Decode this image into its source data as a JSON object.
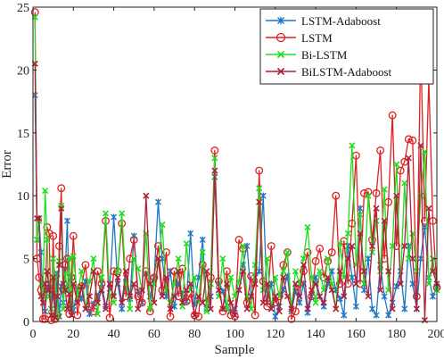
{
  "chart_data": {
    "type": "line",
    "xlabel": "Sample",
    "ylabel": "Error",
    "xlim": [
      0,
      200
    ],
    "ylim": [
      0,
      25
    ],
    "x_ticks": [
      "0",
      "20",
      "40",
      "60",
      "80",
      "100",
      "120",
      "140",
      "160",
      "180",
      "200"
    ],
    "y_ticks": [
      "0",
      "5",
      "10",
      "15",
      "20",
      "25"
    ],
    "legend_position": "top-right",
    "grid": false,
    "series": [
      {
        "name": "LSTM-Adaboost",
        "color": "#1f77c4",
        "marker": "asterisk",
        "x": [
          1,
          2,
          3,
          4,
          5,
          6,
          7,
          8,
          9,
          10,
          11,
          12,
          13,
          14,
          15,
          16,
          17,
          18,
          19,
          20,
          22,
          24,
          26,
          28,
          30,
          32,
          34,
          36,
          38,
          40,
          42,
          44,
          46,
          48,
          50,
          52,
          54,
          56,
          58,
          60,
          62,
          64,
          66,
          68,
          70,
          72,
          74,
          76,
          78,
          80,
          82,
          84,
          86,
          88,
          90,
          92,
          94,
          96,
          98,
          100,
          102,
          104,
          106,
          108,
          110,
          112,
          114,
          116,
          118,
          120,
          122,
          124,
          126,
          128,
          130,
          132,
          134,
          136,
          138,
          140,
          142,
          144,
          146,
          148,
          150,
          152,
          154,
          156,
          158,
          160,
          162,
          164,
          166,
          168,
          170,
          172,
          174,
          176,
          178,
          180,
          182,
          184,
          186,
          188,
          190,
          192,
          194,
          196,
          198,
          200
        ],
        "y": [
          18.0,
          6.5,
          8.2,
          5.5,
          1.5,
          0.8,
          2.5,
          3.0,
          1.0,
          2.2,
          0.5,
          3.8,
          0.4,
          2.8,
          1.5,
          4.2,
          8.0,
          1.2,
          3.5,
          0.9,
          2.5,
          1.8,
          3.2,
          0.6,
          1.4,
          2.0,
          3.0,
          1.2,
          2.6,
          8.3,
          3.0,
          1.0,
          3.5,
          1.8,
          6.8,
          2.4,
          1.5,
          3.8,
          2.0,
          3.5,
          9.5,
          5.0,
          2.0,
          4.0,
          1.2,
          3.0,
          2.2,
          1.6,
          7.0,
          1.4,
          3.5,
          6.5,
          1.0,
          2.0,
          11.5,
          3.0,
          2.4,
          1.0,
          0.8,
          1.0,
          2.5,
          4.5,
          6.0,
          2.0,
          3.5,
          4.0,
          10.0,
          1.5,
          3.0,
          0.4,
          1.2,
          2.5,
          3.6,
          0.8,
          2.4,
          1.5,
          3.0,
          0.7,
          2.0,
          3.5,
          2.0,
          1.2,
          3.0,
          4.0,
          2.5,
          1.8,
          0.5,
          6.0,
          3.5,
          1.2,
          9.0,
          2.5,
          5.0,
          1.0,
          0.5,
          4.5,
          2.0,
          0.5,
          1.5,
          2.8,
          4.0,
          1.0,
          6.0,
          3.0,
          1.0,
          5.0,
          7.5,
          3.5,
          2.0,
          2.8
        ]
      },
      {
        "name": "LSTM",
        "color": "#e02020",
        "marker": "circle",
        "x": [
          1,
          2,
          3,
          4,
          5,
          6,
          7,
          8,
          9,
          10,
          11,
          12,
          13,
          14,
          15,
          16,
          17,
          18,
          19,
          20,
          22,
          24,
          26,
          28,
          30,
          32,
          34,
          36,
          38,
          40,
          42,
          44,
          46,
          48,
          50,
          52,
          54,
          56,
          58,
          60,
          62,
          64,
          66,
          68,
          70,
          72,
          74,
          76,
          78,
          80,
          82,
          84,
          86,
          88,
          90,
          92,
          94,
          96,
          98,
          100,
          102,
          104,
          106,
          108,
          110,
          112,
          114,
          116,
          118,
          120,
          122,
          124,
          126,
          128,
          130,
          132,
          134,
          136,
          138,
          140,
          142,
          144,
          146,
          148,
          150,
          152,
          154,
          156,
          158,
          160,
          162,
          164,
          166,
          168,
          170,
          172,
          174,
          176,
          178,
          180,
          182,
          184,
          186,
          188,
          190,
          192,
          194,
          196,
          198,
          200
        ],
        "y": [
          24.6,
          5.0,
          3.5,
          2.5,
          0.2,
          0.2,
          7.5,
          7.0,
          0.1,
          6.8,
          0.2,
          0.5,
          6.0,
          10.6,
          2.5,
          4.5,
          5.0,
          0.6,
          3.5,
          6.8,
          0.5,
          2.8,
          4.5,
          1.2,
          0.8,
          4.0,
          3.0,
          8.0,
          0.3,
          4.0,
          4.0,
          7.8,
          2.0,
          5.0,
          6.5,
          2.0,
          1.5,
          4.0,
          0.8,
          3.5,
          6.0,
          2.5,
          5.5,
          0.4,
          4.0,
          2.0,
          4.2,
          1.6,
          2.2,
          0.5,
          0.4,
          4.5,
          1.5,
          3.5,
          13.6,
          3.2,
          0.8,
          4.0,
          0.5,
          0.4,
          6.5,
          5.8,
          1.5,
          3.6,
          0.5,
          12.0,
          3.2,
          1.2,
          6.0,
          1.5,
          2.0,
          4.5,
          5.5,
          0.2,
          0.8,
          3.0,
          4.0,
          5.5,
          2.0,
          4.8,
          5.8,
          3.5,
          4.8,
          5.5,
          10.0,
          3.0,
          6.4,
          3.0,
          7.8,
          13.2,
          3.0,
          10.2,
          10.3,
          6.5,
          10.2,
          13.6,
          5.0,
          9.5,
          16.4,
          6.0,
          12.0,
          12.7,
          14.5,
          14.4,
          2.0,
          22.1,
          8.0,
          19.2,
          8.0,
          2.7
        ]
      },
      {
        "name": "Bi-LSTM",
        "color": "#22dd22",
        "marker": "x",
        "x": [
          1,
          2,
          3,
          4,
          5,
          6,
          7,
          8,
          9,
          10,
          11,
          12,
          13,
          14,
          15,
          16,
          17,
          18,
          19,
          20,
          22,
          24,
          26,
          28,
          30,
          32,
          34,
          36,
          38,
          40,
          42,
          44,
          46,
          48,
          50,
          52,
          54,
          56,
          58,
          60,
          62,
          64,
          66,
          68,
          70,
          72,
          74,
          76,
          78,
          80,
          82,
          84,
          86,
          88,
          90,
          92,
          94,
          96,
          98,
          100,
          102,
          104,
          106,
          108,
          110,
          112,
          114,
          116,
          118,
          120,
          122,
          124,
          126,
          128,
          130,
          132,
          134,
          136,
          138,
          140,
          142,
          144,
          146,
          148,
          150,
          152,
          154,
          156,
          158,
          160,
          162,
          164,
          166,
          168,
          170,
          172,
          174,
          176,
          178,
          180,
          182,
          184,
          186,
          188,
          190,
          192,
          194,
          196,
          198,
          200
        ],
        "y": [
          24.2,
          6.5,
          8.0,
          3.0,
          2.0,
          10.4,
          6.5,
          2.0,
          1.0,
          5.0,
          3.5,
          0.4,
          4.8,
          9.2,
          1.0,
          3.8,
          2.5,
          5.0,
          1.2,
          5.2,
          2.0,
          4.0,
          1.0,
          3.2,
          5.0,
          0.6,
          3.5,
          8.6,
          2.0,
          1.5,
          4.0,
          8.6,
          3.0,
          1.0,
          5.0,
          4.2,
          2.5,
          7.0,
          1.0,
          3.0,
          4.5,
          7.7,
          2.5,
          1.5,
          3.0,
          5.0,
          1.2,
          6.2,
          2.5,
          3.5,
          1.5,
          5.5,
          0.8,
          3.0,
          13.0,
          2.0,
          5.0,
          1.0,
          3.5,
          2.0,
          3.2,
          6.0,
          2.0,
          1.0,
          4.5,
          10.6,
          2.5,
          5.0,
          1.0,
          3.5,
          2.0,
          4.0,
          5.5,
          1.0,
          4.0,
          3.0,
          5.0,
          7.5,
          3.5,
          1.5,
          4.0,
          2.5,
          5.0,
          3.0,
          1.0,
          6.2,
          3.5,
          7.0,
          14.0,
          4.5,
          8.5,
          3.0,
          10.0,
          5.5,
          8.0,
          4.0,
          10.5,
          2.5,
          6.0,
          12.5,
          3.0,
          11.0,
          5.0,
          7.0,
          4.0,
          10.0,
          13.5,
          3.0,
          5.0,
          2.5
        ]
      },
      {
        "name": "BiLSTM-Adaboost",
        "color": "#b0203a",
        "marker": "x",
        "x": [
          1,
          2,
          3,
          4,
          5,
          6,
          7,
          8,
          9,
          10,
          11,
          12,
          13,
          14,
          15,
          16,
          17,
          18,
          19,
          20,
          22,
          24,
          26,
          28,
          30,
          32,
          34,
          36,
          38,
          40,
          42,
          44,
          46,
          48,
          50,
          52,
          54,
          56,
          58,
          60,
          62,
          64,
          66,
          68,
          70,
          72,
          74,
          76,
          78,
          80,
          82,
          84,
          86,
          88,
          90,
          92,
          94,
          96,
          98,
          100,
          102,
          104,
          106,
          108,
          110,
          112,
          114,
          116,
          118,
          120,
          122,
          124,
          126,
          128,
          130,
          132,
          134,
          136,
          138,
          140,
          142,
          144,
          146,
          148,
          150,
          152,
          154,
          156,
          158,
          160,
          162,
          164,
          166,
          168,
          170,
          172,
          174,
          176,
          178,
          180,
          182,
          184,
          186,
          188,
          190,
          192,
          194,
          196,
          198,
          200
        ],
        "y": [
          20.5,
          8.2,
          8.2,
          2.0,
          1.5,
          3.0,
          4.0,
          2.5,
          0.5,
          3.5,
          0.3,
          2.0,
          4.5,
          9.0,
          3.0,
          2.5,
          1.0,
          2.2,
          0.5,
          3.0,
          1.5,
          2.8,
          1.0,
          2.0,
          4.0,
          1.5,
          2.5,
          1.0,
          3.0,
          2.0,
          3.5,
          1.5,
          4.0,
          2.0,
          3.0,
          1.0,
          2.5,
          10.0,
          3.0,
          1.5,
          5.0,
          2.0,
          3.5,
          1.0,
          2.0,
          4.0,
          1.5,
          2.5,
          3.0,
          0.5,
          2.0,
          1.5,
          4.0,
          1.0,
          12.0,
          2.5,
          1.0,
          3.0,
          1.5,
          0.5,
          2.5,
          4.0,
          1.0,
          2.0,
          3.0,
          9.5,
          1.5,
          3.0,
          1.0,
          2.0,
          0.8,
          3.5,
          2.0,
          1.0,
          3.0,
          2.0,
          4.5,
          1.0,
          2.5,
          3.0,
          2.0,
          1.5,
          3.5,
          2.5,
          1.0,
          4.0,
          2.0,
          5.0,
          6.0,
          3.0,
          7.0,
          4.0,
          2.0,
          6.0,
          9.0,
          2.5,
          8.0,
          4.0,
          1.0,
          10.0,
          3.0,
          6.0,
          13.0,
          5.0,
          1.0,
          14.0,
          0.1,
          9.0,
          4.0,
          3.0
        ]
      }
    ]
  }
}
